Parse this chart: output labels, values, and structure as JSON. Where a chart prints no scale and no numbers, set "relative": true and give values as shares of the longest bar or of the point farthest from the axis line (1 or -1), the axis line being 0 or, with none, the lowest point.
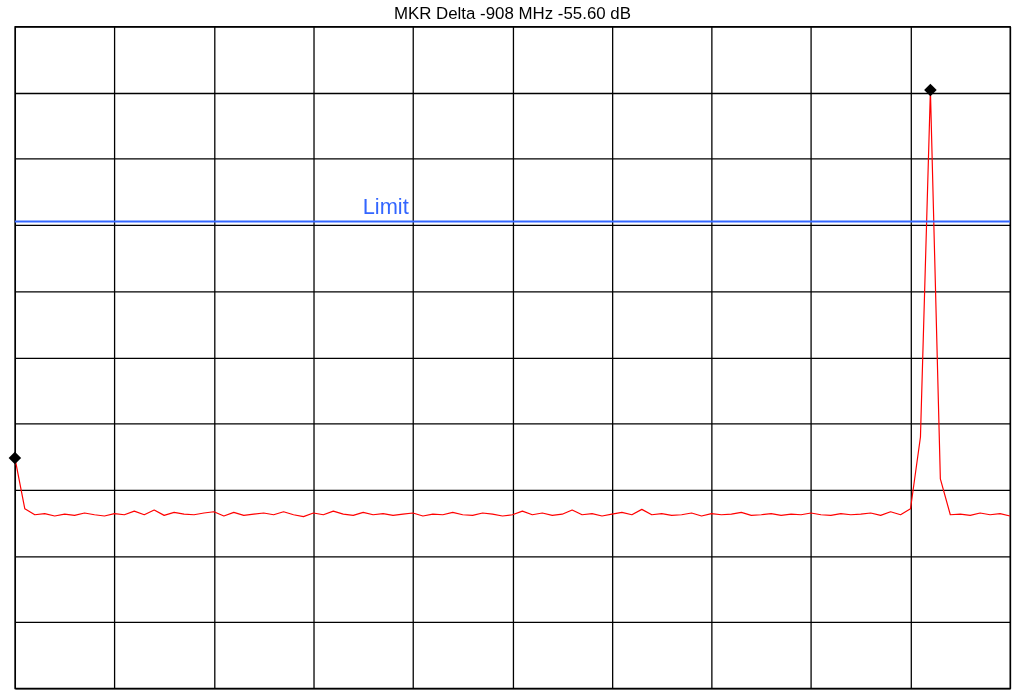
{
  "chart_data": {
    "type": "line",
    "title": "MKR Delta -908 MHz  -55.60 dB",
    "relative": true,
    "grid": true,
    "tick_labels": false,
    "categories": [
      null,
      null,
      null,
      null,
      null,
      null,
      null,
      null,
      null,
      null,
      null,
      null,
      null,
      null,
      null,
      null,
      null,
      null,
      null,
      null,
      null,
      null,
      null,
      null,
      null,
      null,
      null,
      null,
      null,
      null,
      null,
      null,
      null,
      null,
      null,
      null,
      null,
      null,
      null,
      null,
      null,
      null,
      null,
      null,
      null,
      null,
      null,
      null,
      null,
      null,
      null,
      null,
      null,
      null,
      null,
      null,
      null,
      null,
      null,
      null,
      null,
      null,
      null,
      null,
      null,
      null,
      null,
      null,
      null,
      null,
      null,
      null,
      null,
      null,
      null,
      null,
      null,
      null,
      null,
      null,
      null,
      null,
      null,
      null,
      null,
      null,
      null,
      null,
      null,
      null,
      null,
      null,
      null,
      null,
      null,
      null,
      null,
      null,
      null,
      null,
      null
    ],
    "series": [
      {
        "color": "#ff0000",
        "values": [
          0.385,
          0.3,
          0.29,
          0.292,
          0.288,
          0.291,
          0.289,
          0.293,
          0.29,
          0.288,
          0.292,
          0.29,
          0.296,
          0.29,
          0.298,
          0.289,
          0.294,
          0.291,
          0.29,
          0.293,
          0.295,
          0.288,
          0.294,
          0.289,
          0.291,
          0.293,
          0.29,
          0.295,
          0.29,
          0.287,
          0.293,
          0.29,
          0.296,
          0.291,
          0.289,
          0.294,
          0.29,
          0.292,
          0.289,
          0.291,
          0.293,
          0.288,
          0.291,
          0.29,
          0.294,
          0.29,
          0.289,
          0.293,
          0.291,
          0.288,
          0.29,
          0.296,
          0.29,
          0.293,
          0.289,
          0.291,
          0.298,
          0.29,
          0.292,
          0.288,
          0.291,
          0.294,
          0.29,
          0.299,
          0.29,
          0.292,
          0.289,
          0.29,
          0.293,
          0.288,
          0.292,
          0.29,
          0.291,
          0.294,
          0.289,
          0.29,
          0.292,
          0.289,
          0.291,
          0.29,
          0.293,
          0.29,
          0.289,
          0.292,
          0.29,
          0.291,
          0.293,
          0.289,
          0.295,
          0.29,
          0.3,
          0.42,
          1.0,
          0.35,
          0.29,
          0.291,
          0.289,
          0.293,
          0.29,
          0.292,
          0.288
        ]
      }
    ],
    "ref_lines": [
      {
        "axis": "y",
        "value": 0.78,
        "label": "Limit",
        "color": "#3366ff"
      }
    ]
  }
}
